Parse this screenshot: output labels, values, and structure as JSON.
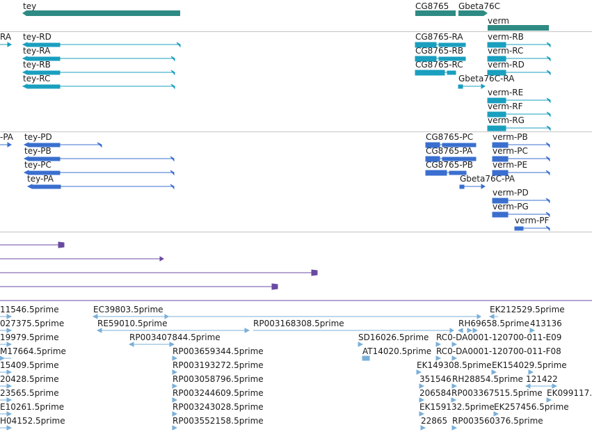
{
  "colors": {
    "gene": "#2e8b84",
    "transcript": "#1a9fbf",
    "protein": "#3a6fcf",
    "alignment": "#6a4aa0",
    "est": "#7aafd8",
    "separator": "#c4c4c4"
  },
  "tracks": {
    "genes": {
      "labels": [
        "tey",
        "CG8765",
        "Gbeta76C",
        "verm"
      ]
    },
    "transcripts": {
      "labels": [
        "RA",
        "tey-RD",
        "tey-RA",
        "tey-RB",
        "tey-RC",
        "CG8765-RA",
        "CG8765-RB",
        "CG8765-RC",
        "Gbeta76C-RA",
        "verm-RB",
        "verm-RC",
        "verm-RD",
        "verm-RE",
        "verm-RF",
        "verm-RG"
      ]
    },
    "proteins": {
      "labels": [
        "-PA",
        "tey-PD",
        "tey-PB",
        "tey-PC",
        "tey-PA",
        "CG8765-PC",
        "CG8765-PA",
        "CG8765-PB",
        "Gbeta76C-PA",
        "verm-PB",
        "verm-PC",
        "verm-PE",
        "verm-PD",
        "verm-PG",
        "verm-PF"
      ]
    },
    "ests": {
      "labels": [
        "11546.5prime",
        "EC39803.5prime",
        "EK212529.5prime",
        "027375.5prime",
        "RE59010.5prime",
        "RP003168308.5prime",
        "RH69658.5prime",
        "413136",
        "19979.5prime",
        "RP003407844.5prime",
        "SD16026.5prime",
        "RC0-DA0001-120700-011-E09",
        "M17664.5prime",
        "RP003659344.5prime",
        "AT14020.5prime",
        "RC0-DA0001-120700-011-F08",
        "15409.5prime",
        "RP003193272.5prime",
        "EK149308.5prime",
        "EK154029.5prime",
        "20428.5prime",
        "RP003058796.5prime",
        "351546",
        "RH28854.5prime",
        "121422",
        "23565.5prime",
        "RP003244609.5prime",
        "206584",
        "RP003367515.5prime",
        "EK099117.",
        "E10261.5prime",
        "RP003243028.5prime",
        "EK159132.5prime",
        "EK257456.5prime",
        "H04152.5prime",
        "RP003552158.5prime",
        "22865",
        "RP003560376.5prime"
      ]
    }
  }
}
